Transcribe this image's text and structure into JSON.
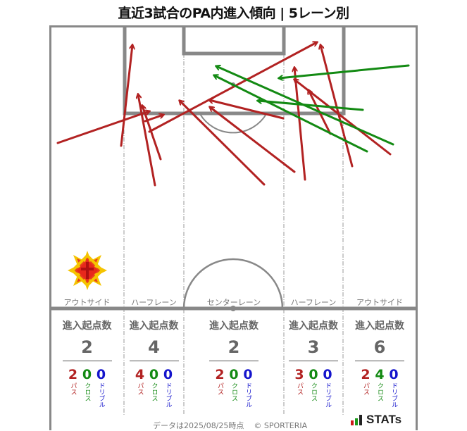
{
  "header": {
    "title": "直近3試合のPA内進入傾向 | 5レーン別"
  },
  "colors": {
    "pass": "#b22222",
    "cross": "#138a13",
    "dribble": "#1414cc",
    "lines": "#888888"
  },
  "lanes": [
    {
      "label": "アウトサイド",
      "header": "進入起点数",
      "total": "2",
      "pass": "2",
      "cross": "0",
      "dribble": "0"
    },
    {
      "label": "ハーフレーン",
      "header": "進入起点数",
      "total": "4",
      "pass": "4",
      "cross": "0",
      "dribble": "0"
    },
    {
      "label": "センターレーン",
      "header": "進入起点数",
      "total": "2",
      "pass": "2",
      "cross": "0",
      "dribble": "0"
    },
    {
      "label": "ハーフレーン",
      "header": "進入起点数",
      "total": "3",
      "pass": "3",
      "cross": "0",
      "dribble": "0"
    },
    {
      "label": "アウトサイド",
      "header": "進入起点数",
      "total": "6",
      "pass": "2",
      "cross": "4",
      "dribble": "0"
    }
  ],
  "legend": {
    "pass": "パス",
    "cross": "クロス",
    "dribble": "ドリブル"
  },
  "footer": {
    "date_note": "データは2025/08/25時点",
    "copyright": "© SPORTERIA",
    "brand": "STATs"
  },
  "chart_data": {
    "type": "arrow-map",
    "title": "直近3試合のPA内進入傾向 | 5レーン別",
    "coordinate_space": "screenshot pixels (663x611)",
    "series": [
      {
        "name": "パス",
        "color": "#b22222",
        "arrows": [
          {
            "from": [
              82,
              203
            ],
            "to": [
              212,
              158
            ]
          },
          {
            "from": [
              172,
              207
            ],
            "to": [
              188,
              64
            ]
          },
          {
            "from": [
              220,
              263
            ],
            "to": [
              196,
              134
            ]
          },
          {
            "from": [
              228,
              226
            ],
            "to": [
              202,
              150
            ]
          },
          {
            "from": [
              206,
              172
            ],
            "to": [
              232,
              163
            ]
          },
          {
            "from": [
              212,
              187
            ],
            "to": [
              450,
              60
            ]
          },
          {
            "from": [
              375,
              262
            ],
            "to": [
              255,
              143
            ]
          },
          {
            "from": [
              418,
              244
            ],
            "to": [
              298,
              152
            ]
          },
          {
            "from": [
              402,
              168
            ],
            "to": [
              297,
              142
            ]
          },
          {
            "from": [
              433,
              255
            ],
            "to": [
              418,
              96
            ]
          },
          {
            "from": [
              500,
              236
            ],
            "to": [
              455,
              64
            ]
          },
          {
            "from": [
              469,
              190
            ],
            "to": [
              438,
              128
            ]
          },
          {
            "from": [
              554,
              219
            ],
            "to": [
              418,
              113
            ]
          }
        ]
      },
      {
        "name": "クロス",
        "color": "#138a13",
        "arrows": [
          {
            "from": [
              580,
              93
            ],
            "to": [
              396,
              111
            ]
          },
          {
            "from": [
              515,
              156
            ],
            "to": [
              366,
              143
            ]
          },
          {
            "from": [
              558,
              205
            ],
            "to": [
              307,
              94
            ]
          },
          {
            "from": [
              521,
              215
            ],
            "to": [
              304,
              107
            ]
          }
        ]
      },
      {
        "name": "ドリブル",
        "color": "#1414cc",
        "arrows": []
      }
    ],
    "lane_totals": {
      "categories": [
        "アウトサイド(左)",
        "ハーフレーン(左)",
        "センターレーン",
        "ハーフレーン(右)",
        "アウトサイド(右)"
      ],
      "total": [
        2,
        4,
        2,
        3,
        6
      ],
      "pass": [
        2,
        4,
        2,
        3,
        2
      ],
      "cross": [
        0,
        0,
        0,
        0,
        4
      ],
      "dribble": [
        0,
        0,
        0,
        0,
        0
      ]
    }
  }
}
